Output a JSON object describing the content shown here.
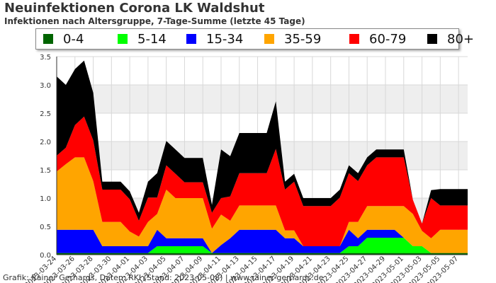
{
  "chart_data": {
    "type": "area",
    "title": "Neuinfektionen Corona LK Waldshut",
    "subtitle": "Infektionen nach Altersgruppe, 7-Tage-Summe (letzte 45 Tage)",
    "xlabel": "",
    "ylabel": "",
    "ylim": [
      0,
      3.5
    ],
    "yticks": [
      "0.0",
      "0.5",
      "1.0",
      "1.5",
      "2.0",
      "2.5",
      "3.0",
      "3.5"
    ],
    "grid": true,
    "legend_position": "top",
    "stacked": true,
    "x": [
      "2023-03-24",
      "2023-03-25",
      "2023-03-26",
      "2023-03-27",
      "2023-03-28",
      "2023-03-29",
      "2023-03-30",
      "2023-03-31",
      "2023-04-01",
      "2023-04-02",
      "2023-04-03",
      "2023-04-04",
      "2023-04-05",
      "2023-04-06",
      "2023-04-07",
      "2023-04-08",
      "2023-04-09",
      "2023-04-10",
      "2023-04-11",
      "2023-04-12",
      "2023-04-13",
      "2023-04-14",
      "2023-04-15",
      "2023-04-16",
      "2023-04-17",
      "2023-04-18",
      "2023-04-19",
      "2023-04-20",
      "2023-04-21",
      "2023-04-22",
      "2023-04-23",
      "2023-04-24",
      "2023-04-25",
      "2023-04-26",
      "2023-04-27",
      "2023-04-28",
      "2023-04-29",
      "2023-04-30",
      "2023-05-01",
      "2023-05-02",
      "2023-05-03",
      "2023-05-04",
      "2023-05-05",
      "2023-05-06",
      "2023-05-07",
      "2023-05-08"
    ],
    "x_tick_labels": [
      "2023-03-24",
      "2023-03-26",
      "2023-03-28",
      "2023-03-30",
      "2023-04-01",
      "2023-04-03",
      "2023-04-05",
      "2023-04-07",
      "2023-04-09",
      "2023-04-11",
      "2023-04-13",
      "2023-04-15",
      "2023-04-17",
      "2023-04-19",
      "2023-04-21",
      "2023-04-23",
      "2023-04-25",
      "2023-04-27",
      "2023-04-29",
      "2023-05-01",
      "2023-05-03",
      "2023-05-05",
      "2023-05-07"
    ],
    "series": [
      {
        "name": "0-4",
        "color": "#006400",
        "values": [
          0.03,
          0.03,
          0.03,
          0.03,
          0.03,
          0.03,
          0.03,
          0.03,
          0.03,
          0.03,
          0.03,
          0.03,
          0.03,
          0.03,
          0.03,
          0.03,
          0.03,
          0.03,
          0.03,
          0.03,
          0.03,
          0.03,
          0.03,
          0.03,
          0.03,
          0.03,
          0.03,
          0.03,
          0.03,
          0.03,
          0.03,
          0.03,
          0.03,
          0.03,
          0.03,
          0.03,
          0.03,
          0.03,
          0.03,
          0.03,
          0.03,
          0.03,
          0.03,
          0.03,
          0.03,
          0.03
        ]
      },
      {
        "name": "5-14",
        "color": "#00ff00",
        "values": [
          0,
          0,
          0,
          0,
          0,
          0,
          0,
          0,
          0,
          0,
          0,
          0.12,
          0.12,
          0.12,
          0.12,
          0.12,
          0.12,
          0,
          0,
          0,
          0,
          0,
          0,
          0,
          0,
          0,
          0,
          0,
          0,
          0,
          0,
          0,
          0.12,
          0.12,
          0.27,
          0.27,
          0.27,
          0.27,
          0.27,
          0.12,
          0.12,
          0,
          0,
          0,
          0,
          0
        ]
      },
      {
        "name": "15-34",
        "color": "#0000ff",
        "values": [
          0.41,
          0.41,
          0.41,
          0.41,
          0.41,
          0.12,
          0.12,
          0.12,
          0.12,
          0.12,
          0.12,
          0.29,
          0.14,
          0.14,
          0.14,
          0.14,
          0.14,
          0.0,
          0.14,
          0.26,
          0.41,
          0.41,
          0.41,
          0.41,
          0.41,
          0.26,
          0.26,
          0.12,
          0.12,
          0.12,
          0.12,
          0.12,
          0.29,
          0.14,
          0.14,
          0.14,
          0.14,
          0.14,
          0.0,
          0.0,
          0.0,
          0.0,
          0.0,
          0.0,
          0.0,
          0.0
        ]
      },
      {
        "name": "35-59",
        "color": "#ffa500",
        "values": [
          1.03,
          1.16,
          1.28,
          1.28,
          0.86,
          0.43,
          0.43,
          0.43,
          0.26,
          0.17,
          0.43,
          0.28,
          0.86,
          0.71,
          0.71,
          0.71,
          0.71,
          0.43,
          0.54,
          0.31,
          0.43,
          0.43,
          0.43,
          0.43,
          0.43,
          0.14,
          0.14,
          0,
          0,
          0,
          0,
          0,
          0.14,
          0.29,
          0.42,
          0.42,
          0.42,
          0.42,
          0.56,
          0.57,
          0.27,
          0.26,
          0.41,
          0.41,
          0.41,
          0.41
        ]
      },
      {
        "name": "60-79",
        "color": "#ff0000",
        "values": [
          0.28,
          0.29,
          0.57,
          0.72,
          0.72,
          0.57,
          0.57,
          0.57,
          0.57,
          0.28,
          0.43,
          0.29,
          0.43,
          0.43,
          0.28,
          0.28,
          0.28,
          0.28,
          0.29,
          0.43,
          0.57,
          0.57,
          0.57,
          0.57,
          1.0,
          0.72,
          0.86,
          0.71,
          0.71,
          0.71,
          0.71,
          0.86,
          0.86,
          0.72,
          0.72,
          0.86,
          0.86,
          0.86,
          0.86,
          0.25,
          0.13,
          0.71,
          0.43,
          0.43,
          0.43,
          0.43
        ]
      },
      {
        "name": "80+",
        "color": "#000000",
        "values": [
          1.4,
          1.11,
          0.99,
          0.99,
          0.84,
          0.14,
          0.14,
          0.14,
          0.14,
          0.14,
          0.28,
          0.43,
          0.43,
          0.43,
          0.43,
          0.43,
          0.43,
          0.14,
          0.86,
          0.71,
          0.71,
          0.71,
          0.71,
          0.71,
          0.84,
          0.14,
          0.14,
          0.14,
          0.14,
          0.14,
          0.14,
          0.14,
          0.14,
          0.14,
          0.14,
          0.14,
          0.14,
          0.14,
          0.14,
          0,
          0,
          0.14,
          0.29,
          0.29,
          0.29,
          0.29
        ]
      }
    ]
  },
  "credit": "Grafik: Rainer Gerhards, Daten: RKI (Stand: 2023-05-08) | www.rainer-gerhards.de"
}
